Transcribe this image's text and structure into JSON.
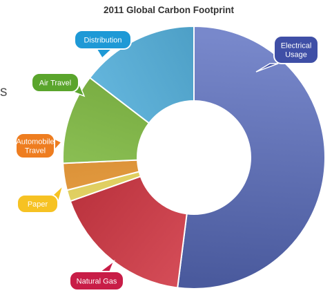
{
  "chart_data": {
    "type": "pie",
    "variant": "donut",
    "title": "2011 Global Carbon Footprint",
    "slices": [
      {
        "label": "Electrical Usage",
        "lines": [
          "Electrical",
          "Usage"
        ],
        "value": 52,
        "color": "#5a6ec0"
      },
      {
        "label": "Natural Gas",
        "lines": [
          "Natural Gas"
        ],
        "value": 17.6,
        "color": "#d8323f"
      },
      {
        "label": "Paper",
        "lines": [
          "Paper"
        ],
        "value": 1.4,
        "color": "#f5e05a"
      },
      {
        "label": "Automobile Travel",
        "lines": [
          "Automobile",
          "Travel"
        ],
        "value": 3.3,
        "color": "#f39a2c"
      },
      {
        "label": "Air Travel",
        "lines": [
          "Air Travel"
        ],
        "value": 11.1,
        "color": "#83c23f"
      },
      {
        "label": "Distribution",
        "lines": [
          "Distribution"
        ],
        "value": 14.6,
        "color": "#4fb3e3"
      }
    ],
    "callout_colors": {
      "Electrical Usage": "#3f4fa6",
      "Natural Gas": "#c81d47",
      "Paper": "#f6c223",
      "Automobile Travel": "#ee7d20",
      "Air Travel": "#5aa52c",
      "Distribution": "#1e99d6"
    },
    "legend": "none",
    "grid": false
  },
  "edge_text": "s"
}
